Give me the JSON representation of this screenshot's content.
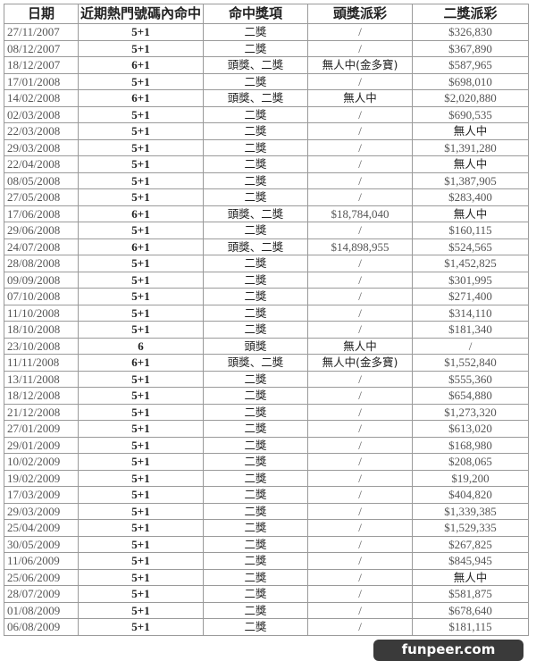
{
  "headers": [
    "日期",
    "近期熱門號碼內命中",
    "命中獎項",
    "頭獎派彩",
    "二獎派彩"
  ],
  "rows": [
    [
      "27/11/2007",
      "5+1",
      "二獎",
      "/",
      "$326,830"
    ],
    [
      "08/12/2007",
      "5+1",
      "二獎",
      "/",
      "$367,890"
    ],
    [
      "18/12/2007",
      "6+1",
      "頭獎、二獎",
      "無人中(金多寶)",
      "$587,965"
    ],
    [
      "17/01/2008",
      "5+1",
      "二獎",
      "/",
      "$698,010"
    ],
    [
      "14/02/2008",
      "6+1",
      "頭獎、二獎",
      "無人中",
      "$2,020,880"
    ],
    [
      "02/03/2008",
      "5+1",
      "二獎",
      "/",
      "$690,535"
    ],
    [
      "22/03/2008",
      "5+1",
      "二獎",
      "/",
      "無人中"
    ],
    [
      "29/03/2008",
      "5+1",
      "二獎",
      "/",
      "$1,391,280"
    ],
    [
      "22/04/2008",
      "5+1",
      "二獎",
      "/",
      "無人中"
    ],
    [
      "08/05/2008",
      "5+1",
      "二獎",
      "/",
      "$1,387,905"
    ],
    [
      "27/05/2008",
      "5+1",
      "二獎",
      "/",
      "$283,400"
    ],
    [
      "17/06/2008",
      "6+1",
      "頭獎、二獎",
      "$18,784,040",
      "無人中"
    ],
    [
      "29/06/2008",
      "5+1",
      "二獎",
      "/",
      "$160,115"
    ],
    [
      "24/07/2008",
      "6+1",
      "頭獎、二獎",
      "$14,898,955",
      "$524,565"
    ],
    [
      "28/08/2008",
      "5+1",
      "二獎",
      "/",
      "$1,452,825"
    ],
    [
      "09/09/2008",
      "5+1",
      "二獎",
      "/",
      "$301,995"
    ],
    [
      "07/10/2008",
      "5+1",
      "二獎",
      "/",
      "$271,400"
    ],
    [
      "11/10/2008",
      "5+1",
      "二獎",
      "/",
      "$314,110"
    ],
    [
      "18/10/2008",
      "5+1",
      "二獎",
      "/",
      "$181,340"
    ],
    [
      "23/10/2008",
      "6",
      "頭獎",
      "無人中",
      "/"
    ],
    [
      "11/11/2008",
      "6+1",
      "頭獎、二獎",
      "無人中(金多寶)",
      "$1,552,840"
    ],
    [
      "13/11/2008",
      "5+1",
      "二獎",
      "/",
      "$555,360"
    ],
    [
      "18/12/2008",
      "5+1",
      "二獎",
      "/",
      "$654,880"
    ],
    [
      "21/12/2008",
      "5+1",
      "二獎",
      "/",
      "$1,273,320"
    ],
    [
      "27/01/2009",
      "5+1",
      "二獎",
      "/",
      "$613,020"
    ],
    [
      "29/01/2009",
      "5+1",
      "二獎",
      "/",
      "$168,980"
    ],
    [
      "10/02/2009",
      "5+1",
      "二獎",
      "/",
      "$208,065"
    ],
    [
      "19/02/2009",
      "5+1",
      "二獎",
      "/",
      "$19,200"
    ],
    [
      "17/03/2009",
      "5+1",
      "二獎",
      "/",
      "$404,820"
    ],
    [
      "29/03/2009",
      "5+1",
      "二獎",
      "/",
      "$1,339,385"
    ],
    [
      "25/04/2009",
      "5+1",
      "二獎",
      "/",
      "$1,529,335"
    ],
    [
      "30/05/2009",
      "5+1",
      "二獎",
      "/",
      "$267,825"
    ],
    [
      "11/06/2009",
      "5+1",
      "二獎",
      "/",
      "$845,945"
    ],
    [
      "25/06/2009",
      "5+1",
      "二獎",
      "/",
      "無人中"
    ],
    [
      "28/07/2009",
      "5+1",
      "二獎",
      "/",
      "$581,875"
    ],
    [
      "01/08/2009",
      "5+1",
      "二獎",
      "/",
      "$678,640"
    ],
    [
      "06/08/2009",
      "5+1",
      "二獎",
      "/",
      "$181,115"
    ]
  ],
  "watermark": "funpeer.com"
}
